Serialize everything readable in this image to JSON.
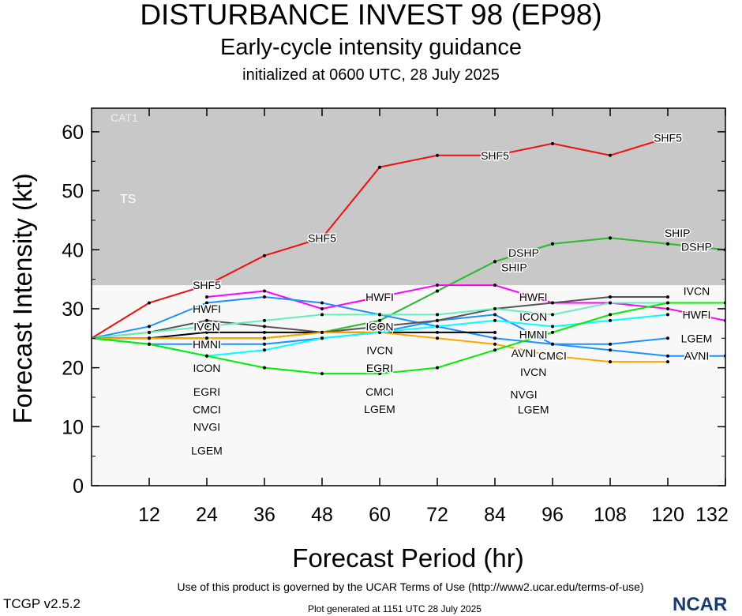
{
  "header": {
    "title": "DISTURBANCE INVEST 98 (EP98)",
    "subtitle": "Early-cycle intensity guidance",
    "init": "initialized at 0600 UTC, 28 July 2025"
  },
  "footer": {
    "terms": "Use of this product is governed by the UCAR Terms of Use (http://www2.ucar.edu/terms-of-use)",
    "version": "TCGP v2.5.2",
    "generated": "Plot generated at 1151 UTC   28 July 2025",
    "logo": "NCAR"
  },
  "chart_data": {
    "type": "line",
    "xlabel": "Forecast Period (hr)",
    "ylabel": "Forecast Intensity (kt)",
    "xlim": [
      0,
      132
    ],
    "ylim": [
      0,
      64
    ],
    "xticks": [
      12,
      24,
      36,
      48,
      60,
      72,
      84,
      96,
      108,
      120,
      132
    ],
    "yticks": [
      0,
      10,
      20,
      30,
      40,
      50,
      60
    ],
    "bands": [
      {
        "label": "TS",
        "from": 34,
        "to": 64,
        "color": "#c8c8c8"
      },
      {
        "label": "CAT1",
        "from": 64,
        "to": 83,
        "color": "#c8c8c8"
      }
    ],
    "background": "#f8f8f8",
    "x": [
      0,
      12,
      24,
      36,
      48,
      60,
      72,
      84,
      96,
      108,
      120,
      132
    ],
    "series": [
      {
        "name": "SHF5",
        "color": "#ee1111",
        "values": [
          25,
          31,
          34,
          39,
          42,
          54,
          56,
          56,
          58,
          56,
          59,
          null
        ],
        "label_hours": [
          24,
          48,
          84,
          120
        ]
      },
      {
        "name": "DSHP",
        "color": "#33bb33",
        "values": [
          25,
          25,
          25,
          25,
          26,
          28,
          33,
          38,
          41,
          42,
          41,
          40
        ],
        "label_hours": [
          90,
          126
        ]
      },
      {
        "name": "SHIP",
        "color": "#33bb33",
        "values": [
          25,
          25,
          25,
          25,
          26,
          28,
          33,
          38,
          41,
          42,
          41,
          40
        ],
        "label_hours": [
          88,
          122
        ]
      },
      {
        "name": "HWFI",
        "color": "#ff00ff",
        "values": [
          25,
          null,
          32,
          33,
          30,
          32,
          34,
          34,
          31,
          31,
          30,
          28
        ],
        "label_hours": [
          24,
          60,
          92,
          126
        ]
      },
      {
        "name": "HMNI",
        "color": "#1e90ff",
        "values": [
          25,
          24,
          24,
          24,
          25,
          26,
          28,
          29,
          24,
          24,
          25,
          null
        ],
        "label_hours": [
          24,
          92
        ]
      },
      {
        "name": "AVNI",
        "color": "#1e90ff",
        "values": [
          25,
          27,
          31,
          32,
          31,
          29,
          27,
          25,
          24,
          23,
          22,
          22
        ],
        "label_hours": [
          90,
          126
        ]
      },
      {
        "name": "ICON",
        "color": "#555555",
        "values": [
          25,
          26,
          28,
          27,
          26,
          27,
          28,
          30,
          31,
          32,
          32,
          null
        ],
        "label_hours": [
          24,
          60,
          92
        ]
      },
      {
        "name": "IVCN",
        "color": "#66eebb",
        "values": [
          25,
          26,
          27,
          28,
          29,
          29,
          29,
          30,
          29,
          31,
          31,
          31
        ],
        "label_hours": [
          24,
          60,
          92,
          126
        ]
      },
      {
        "name": "EGRI",
        "color": "#000000",
        "values": [
          25,
          25,
          26,
          26,
          26,
          26,
          26,
          26,
          null,
          null,
          null,
          null
        ],
        "label_hours": [
          24,
          60
        ]
      },
      {
        "name": "CMCI",
        "color": "#ffa500",
        "values": [
          25,
          25,
          25,
          25,
          26,
          26,
          25,
          24,
          22,
          21,
          21,
          null
        ],
        "label_hours": [
          24,
          60,
          96
        ]
      },
      {
        "name": "NVGI",
        "color": "#00ffff",
        "values": [
          25,
          24,
          22,
          23,
          25,
          26,
          27,
          28,
          27,
          28,
          29,
          null
        ],
        "label_hours": [
          24,
          90
        ]
      },
      {
        "name": "LGEM",
        "color": "#00ee00",
        "values": [
          25,
          24,
          22,
          20,
          19,
          19,
          20,
          23,
          26,
          29,
          31,
          31
        ],
        "label_hours": [
          24,
          60,
          92,
          126
        ]
      }
    ]
  }
}
